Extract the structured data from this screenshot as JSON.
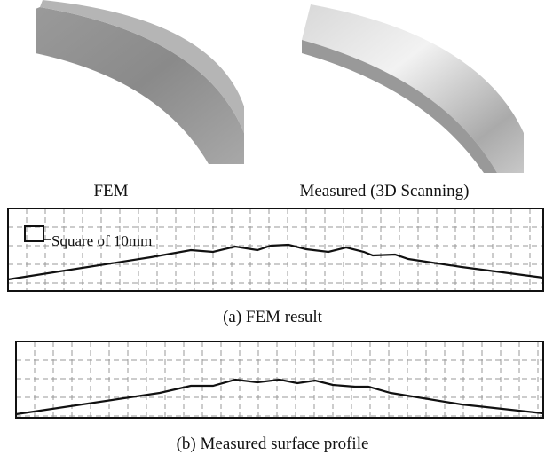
{
  "images": [
    {
      "caption": "FEM"
    },
    {
      "caption": "Measured (3D Scanning)"
    }
  ],
  "panels": [
    {
      "annotation": "Square of 10mm",
      "caption": "(a) FEM result"
    },
    {
      "caption": "(b) Measured surface profile"
    }
  ]
}
